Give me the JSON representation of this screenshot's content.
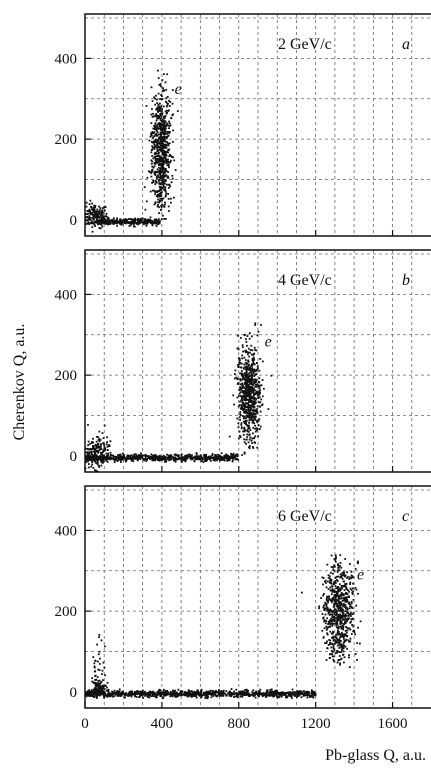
{
  "figure": {
    "ylabel": "Cherenkov Q, a.u.",
    "xlabel": "Pb-glass Q, a.u."
  },
  "chart_data": [
    {
      "type": "scatter",
      "panel_label": "a",
      "momentum_label": "2 GeV/c",
      "electron_label": "e",
      "xlim": [
        0,
        1800
      ],
      "ylim": [
        -40,
        510
      ],
      "x_ticks": [
        0,
        400,
        800,
        1200,
        1600
      ],
      "y_ticks": [
        0,
        200,
        400
      ],
      "grid": true,
      "clusters": [
        {
          "name": "pedestal",
          "x_center": 50,
          "y_center": 10,
          "x_spread": 35,
          "y_spread": 15
        },
        {
          "name": "band",
          "x_range": [
            60,
            390
          ],
          "y_center": -5,
          "y_spread": 4
        },
        {
          "name": "e",
          "x_center": 395,
          "y_center": 170,
          "x_spread": 25,
          "y_spread": 80,
          "y_range": [
            0,
            380
          ]
        }
      ]
    },
    {
      "type": "scatter",
      "panel_label": "b",
      "momentum_label": "4 GeV/c",
      "electron_label": "e",
      "xlim": [
        0,
        1800
      ],
      "ylim": [
        -40,
        510
      ],
      "x_ticks": [
        0,
        400,
        800,
        1200,
        1600
      ],
      "y_ticks": [
        0,
        200,
        400
      ],
      "grid": true,
      "clusters": [
        {
          "name": "pedestal",
          "x_center": 60,
          "y_center": 10,
          "x_spread": 35,
          "y_spread": 20
        },
        {
          "name": "band",
          "x_range": [
            0,
            800
          ],
          "y_center": -5,
          "y_spread": 4
        },
        {
          "name": "e",
          "x_center": 855,
          "y_center": 150,
          "x_spread": 30,
          "y_spread": 60,
          "y_range": [
            0,
            330
          ]
        }
      ]
    },
    {
      "type": "scatter",
      "panel_label": "c",
      "momentum_label": "6 GeV/c",
      "electron_label": "e",
      "xlim": [
        0,
        1800
      ],
      "ylim": [
        -40,
        510
      ],
      "x_ticks": [
        0,
        400,
        800,
        1200,
        1600
      ],
      "y_ticks": [
        0,
        200,
        400
      ],
      "grid": true,
      "clusters": [
        {
          "name": "pedestal",
          "x_center": 70,
          "y_center": 40,
          "x_spread": 20,
          "y_spread": 50,
          "y_range": [
            -5,
            190
          ]
        },
        {
          "name": "band",
          "x_range": [
            0,
            1200
          ],
          "y_center": -5,
          "y_spread": 4
        },
        {
          "name": "e",
          "x_center": 1320,
          "y_center": 200,
          "x_spread": 40,
          "y_spread": 60,
          "y_range": [
            60,
            340
          ]
        }
      ]
    }
  ]
}
